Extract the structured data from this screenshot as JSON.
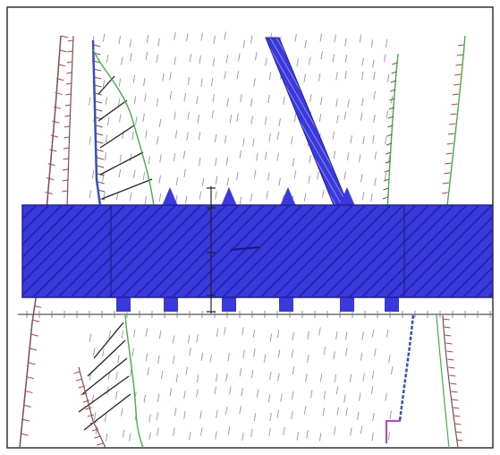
{
  "drawing": {
    "colors": {
      "frame": "#333333",
      "background": "#ffffff",
      "rock_dash": "#a0a0a0",
      "pipe_fill": "#3a3adc",
      "pipe_hatch": "#1f1fa8",
      "pipe_outline": "#2020a0",
      "hatch_ticks": "#7a5050",
      "red_ticks": "#c04040",
      "green_contour": "#45b045",
      "blue_strip": "#3a4ad0",
      "black_line": "#222222",
      "magenta": "#d040c0"
    },
    "elements": [
      "drawing-frame",
      "rock-hatch-field",
      "left-fault-hatched",
      "left-second-fault",
      "green-weathering-contour",
      "upper-triangle-hatch",
      "lower-triangle-hatch",
      "diagonal-dike",
      "pipe-band",
      "pipe-flanges",
      "base-rail",
      "survey-axis",
      "right-fault-hatched",
      "right-green-contour",
      "right-blue-fault",
      "magenta-marker"
    ]
  }
}
